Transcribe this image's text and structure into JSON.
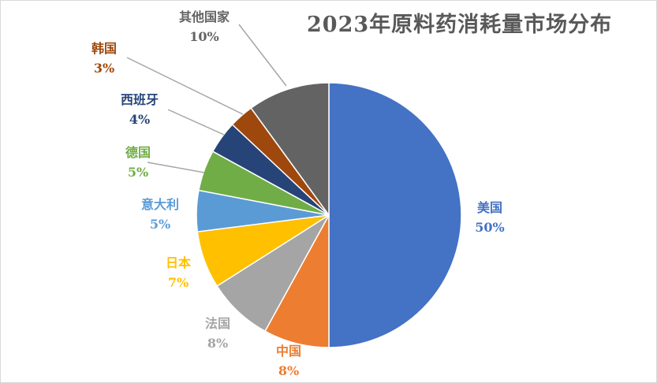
{
  "chart_data": {
    "type": "pie",
    "title": "2023年原料药消耗量市场分布",
    "start_angle": "top, clockwise",
    "slices": [
      {
        "label": "美国",
        "value": 50,
        "value_label": "50%",
        "color": "#4472C4"
      },
      {
        "label": "中国",
        "value": 8,
        "value_label": "8%",
        "color": "#ED7D31"
      },
      {
        "label": "法国",
        "value": 8,
        "value_label": "8%",
        "color": "#A5A5A5"
      },
      {
        "label": "日本",
        "value": 7,
        "value_label": "7%",
        "color": "#FFC000"
      },
      {
        "label": "意大利",
        "value": 5,
        "value_label": "5%",
        "color": "#5B9BD5"
      },
      {
        "label": "德国",
        "value": 5,
        "value_label": "5%",
        "color": "#70AD47"
      },
      {
        "label": "西班牙",
        "value": 4,
        "value_label": "4%",
        "color": "#264478"
      },
      {
        "label": "韩国",
        "value": 3,
        "value_label": "3%",
        "color": "#9E480E"
      },
      {
        "label": "其他国家",
        "value": 10,
        "value_label": "10%",
        "color": "#636363"
      }
    ]
  }
}
